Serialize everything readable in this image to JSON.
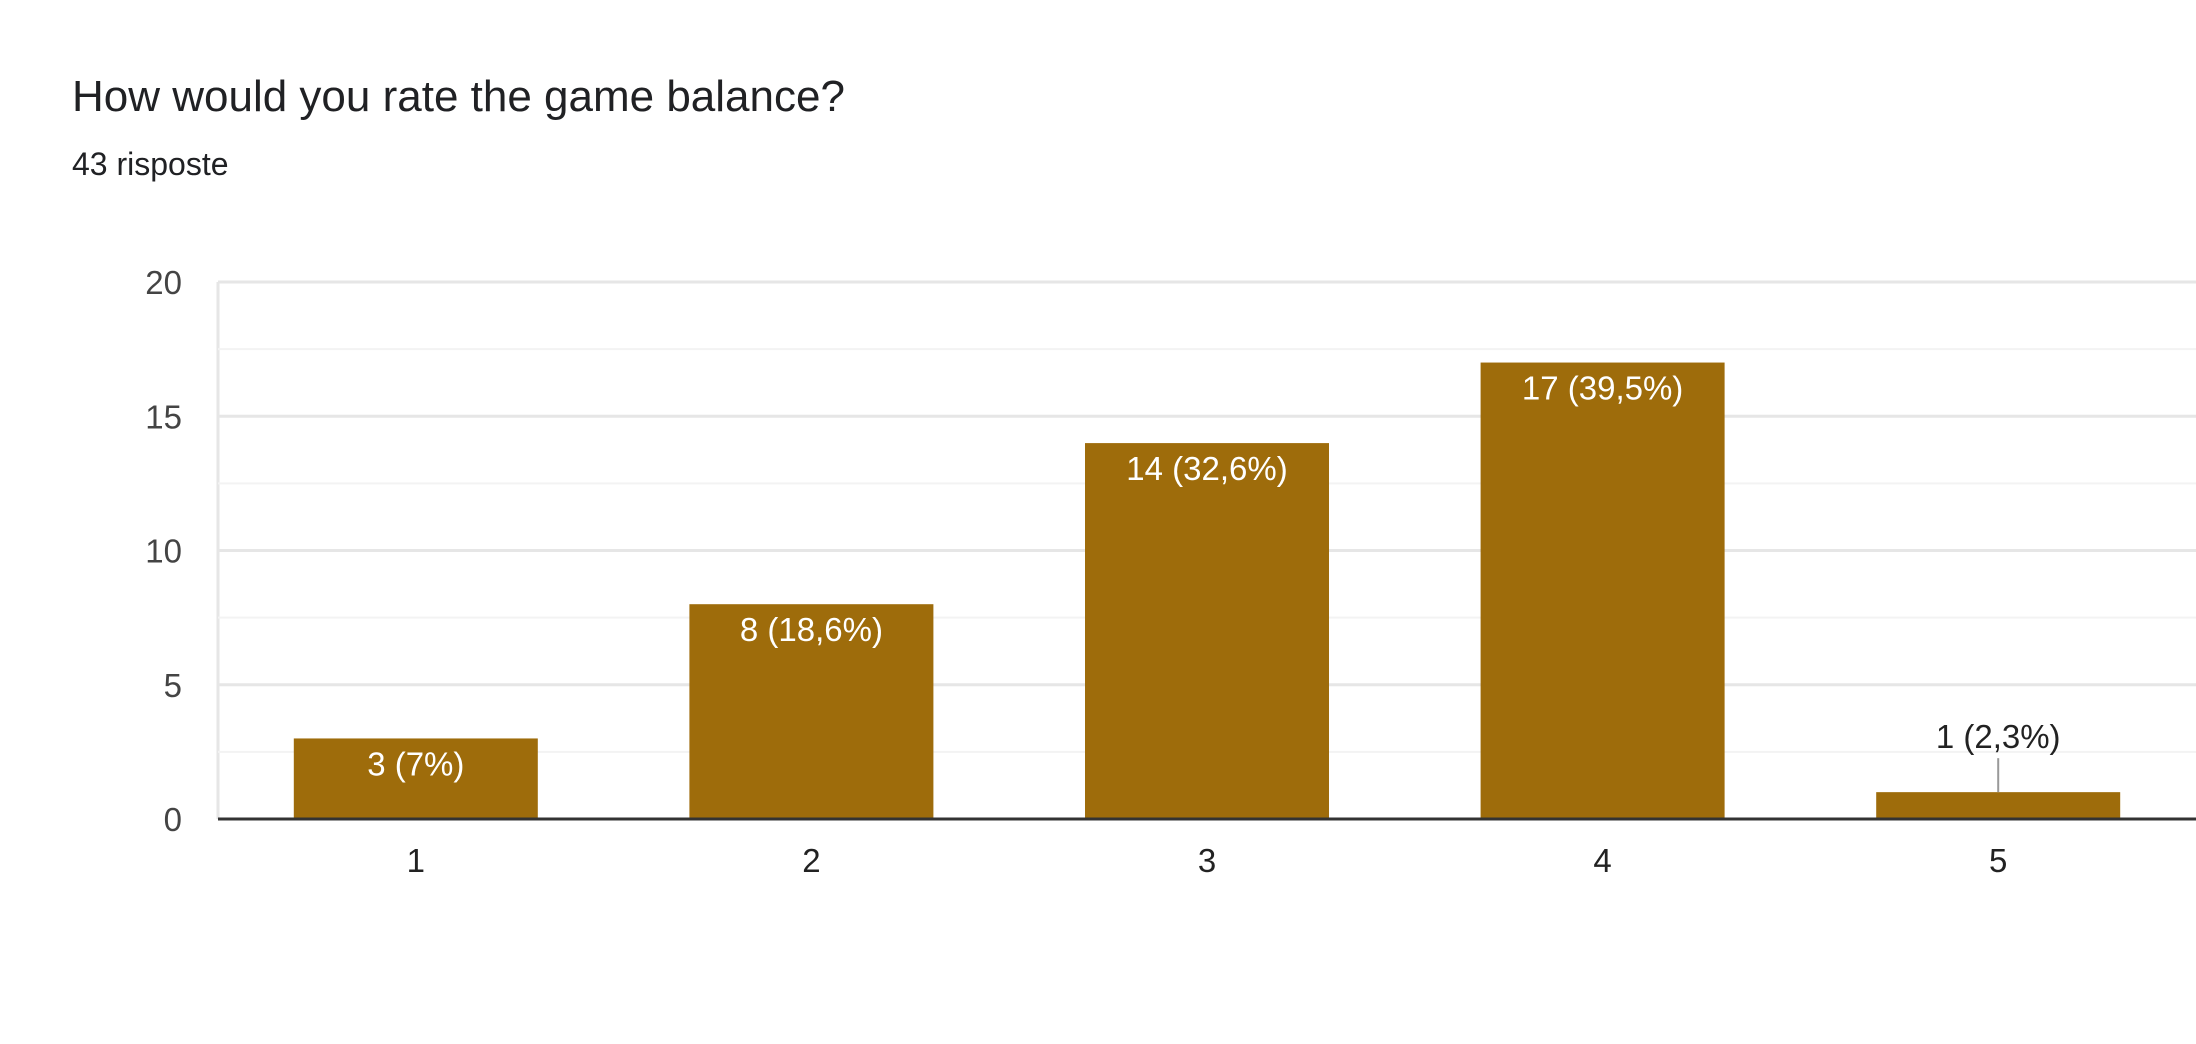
{
  "header": {
    "title": "How would you rate the game balance?",
    "subtitle": "43 risposte"
  },
  "colors": {
    "bar": "#9E6C0B",
    "grid_major": "#E6E6E6",
    "grid_minor": "#F3F3F3",
    "axis": "#333333",
    "label_inside": "#FFFFFF",
    "label_outside": "#222222",
    "leader_line": "#999999"
  },
  "chart_data": {
    "type": "bar",
    "title": "How would you rate the game balance?",
    "subtitle": "43 risposte",
    "categories": [
      "1",
      "2",
      "3",
      "4",
      "5"
    ],
    "values": [
      3,
      8,
      14,
      17,
      1
    ],
    "data_labels": [
      "3 (7%)",
      "8 (18,6%)",
      "14 (32,6%)",
      "17 (39,5%)",
      "1 (2,3%)"
    ],
    "yticks": [
      0,
      5,
      10,
      15,
      20
    ],
    "ylim": [
      0,
      20
    ],
    "xlabel": "",
    "ylabel": "",
    "grid": true,
    "legend": "none"
  }
}
